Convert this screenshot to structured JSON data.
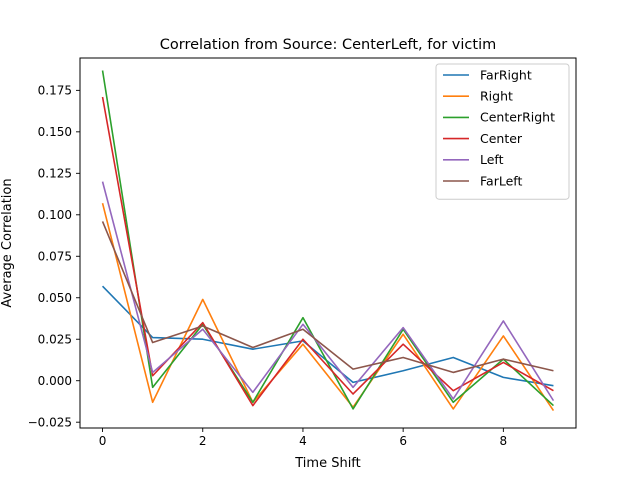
{
  "chart_data": {
    "type": "line",
    "title": "Correlation from Source: CenterLeft, for victim",
    "xlabel": "Time Shift",
    "ylabel": "Average Correlation",
    "xlim": [
      -0.45,
      9.45
    ],
    "ylim": [
      -0.0285,
      0.1945
    ],
    "xticks": [
      0,
      2,
      4,
      6,
      8
    ],
    "yticks": [
      -0.025,
      0.0,
      0.025,
      0.05,
      0.075,
      0.1,
      0.125,
      0.15,
      0.175
    ],
    "ytick_labels": [
      "−0.025",
      "0.000",
      "0.025",
      "0.050",
      "0.075",
      "0.100",
      "0.125",
      "0.150",
      "0.175"
    ],
    "legend_position": "top-right",
    "x": [
      0,
      1,
      2,
      3,
      4,
      5,
      6,
      7,
      8,
      9
    ],
    "series": [
      {
        "name": "FarRight",
        "color": "#1f77b4",
        "values": [
          0.057,
          0.026,
          0.025,
          0.019,
          0.024,
          -0.001,
          0.006,
          0.014,
          0.002,
          -0.003
        ]
      },
      {
        "name": "Right",
        "color": "#ff7f0e",
        "values": [
          0.107,
          -0.013,
          0.049,
          -0.013,
          0.022,
          -0.016,
          0.028,
          -0.017,
          0.027,
          -0.018
        ]
      },
      {
        "name": "CenterRight",
        "color": "#2ca02c",
        "values": [
          0.187,
          -0.004,
          0.034,
          -0.013,
          0.038,
          -0.017,
          0.031,
          -0.013,
          0.013,
          -0.015
        ]
      },
      {
        "name": "Center",
        "color": "#d62728",
        "values": [
          0.171,
          0.003,
          0.035,
          -0.015,
          0.025,
          -0.008,
          0.022,
          -0.006,
          0.011,
          -0.006
        ]
      },
      {
        "name": "Left",
        "color": "#9467bd",
        "values": [
          0.12,
          0.005,
          0.031,
          -0.007,
          0.034,
          -0.004,
          0.032,
          -0.011,
          0.036,
          -0.012
        ]
      },
      {
        "name": "FarLeft",
        "color": "#8c564b",
        "values": [
          0.096,
          0.023,
          0.033,
          0.02,
          0.031,
          0.007,
          0.014,
          0.005,
          0.013,
          0.006
        ]
      }
    ]
  }
}
